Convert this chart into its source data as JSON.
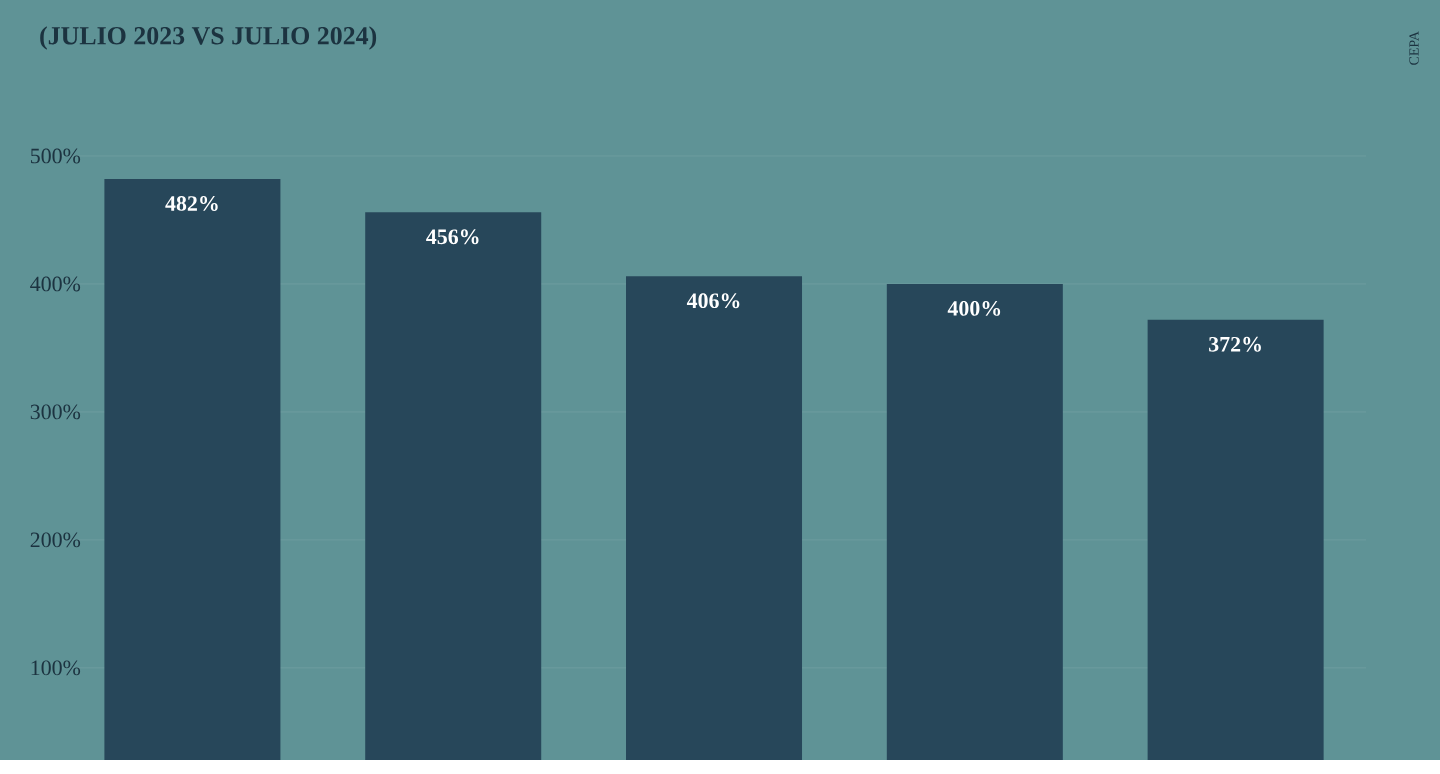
{
  "chart_data": {
    "type": "bar",
    "title": "(JULIO 2023 VS JULIO 2024)",
    "categories": [
      null,
      null,
      null,
      null,
      null
    ],
    "values": [
      482,
      456,
      406,
      400,
      372
    ],
    "value_labels": [
      "482%",
      "456%",
      "406%",
      "400%",
      "372%"
    ],
    "color": "#27475a",
    "ylim": [
      28,
      500
    ],
    "yticks": [
      {
        "value": 100,
        "label": "100%"
      },
      {
        "value": 200,
        "label": "200%"
      },
      {
        "value": 300,
        "label": "300%"
      },
      {
        "value": 400,
        "label": "400%"
      },
      {
        "value": 500,
        "label": "500%"
      }
    ],
    "grid": "y",
    "tick_labels": "y",
    "annotations": [
      "CEPA"
    ]
  }
}
